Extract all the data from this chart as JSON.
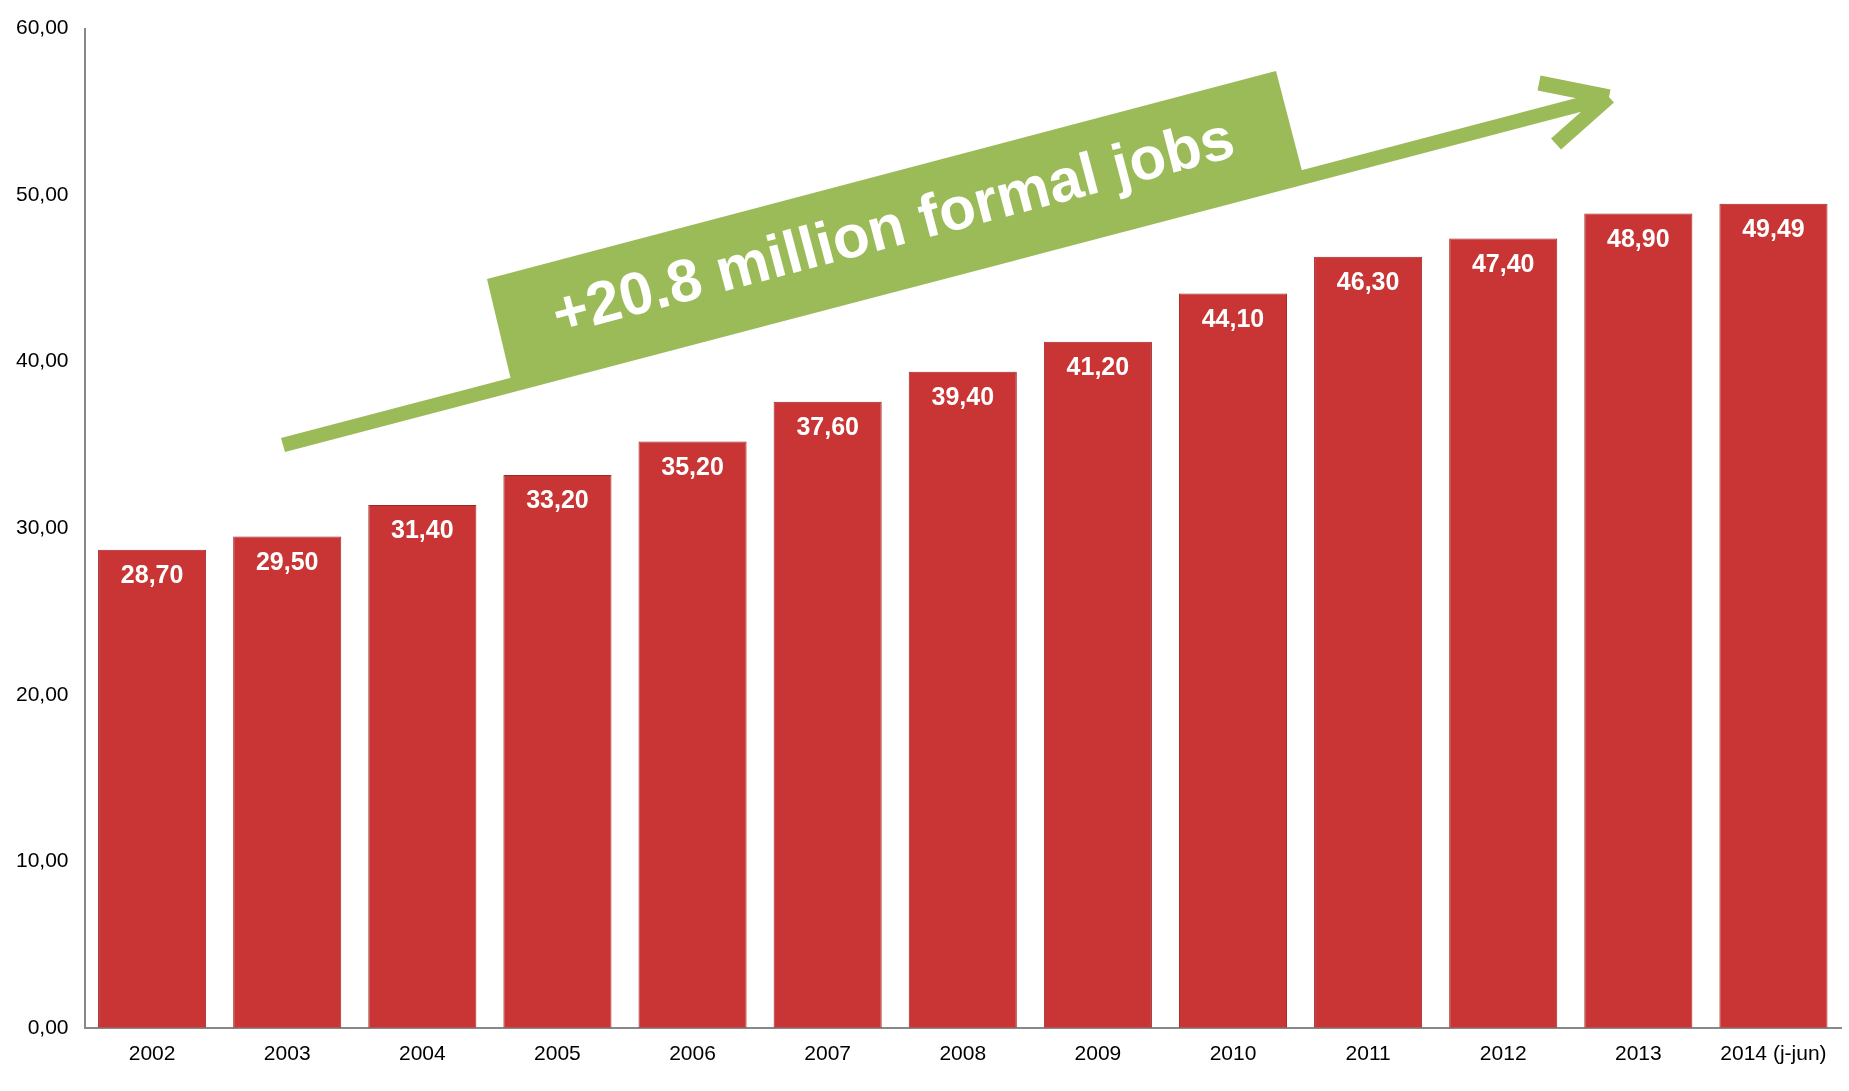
{
  "chart_data": {
    "type": "bar",
    "categories": [
      "2002",
      "2003",
      "2004",
      "2005",
      "2006",
      "2007",
      "2008",
      "2009",
      "2010",
      "2011",
      "2012",
      "2013",
      "2014 (j-jun)"
    ],
    "values": [
      28.7,
      29.5,
      31.4,
      33.2,
      35.2,
      37.6,
      39.4,
      41.2,
      44.1,
      46.3,
      47.4,
      48.9,
      49.49
    ],
    "value_labels": [
      "28,70",
      "29,50",
      "31,40",
      "33,20",
      "35,20",
      "37,60",
      "39,40",
      "41,20",
      "44,10",
      "46,30",
      "47,40",
      "48,90",
      "49,49"
    ],
    "color": "#c93535",
    "ylim": [
      0,
      60
    ],
    "yticks": [
      {
        "value": 0,
        "label": "0,00"
      },
      {
        "value": 10,
        "label": "10,00"
      },
      {
        "value": 20,
        "label": "20,00"
      },
      {
        "value": 30,
        "label": "30,00"
      },
      {
        "value": 40,
        "label": "40,00"
      },
      {
        "value": 50,
        "label": "50,00"
      },
      {
        "value": 60,
        "label": "60,00"
      }
    ],
    "grid": false,
    "legend": false,
    "annotations": [
      "+20.8 million formal jobs"
    ]
  }
}
